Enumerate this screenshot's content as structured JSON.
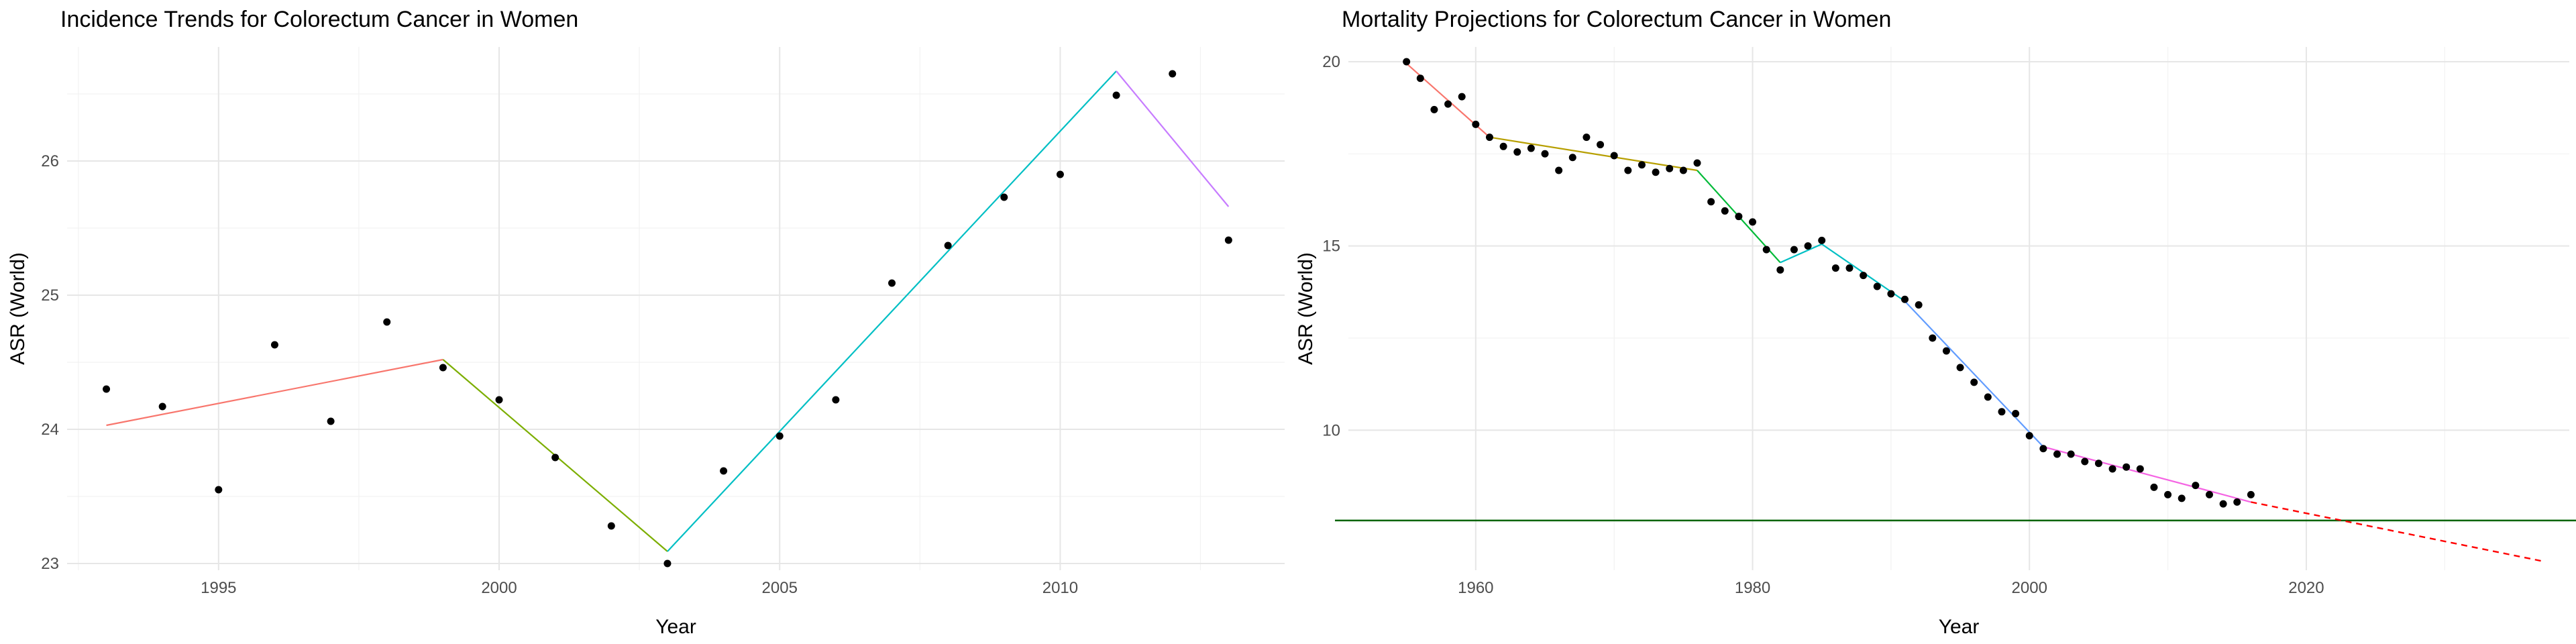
{
  "chart_data": [
    {
      "type": "line",
      "title": "Incidence Trends for Colorectum Cancer in Women",
      "xlabel": "Year",
      "ylabel": "ASR (World)",
      "xlim": [
        1992.3,
        2014.0
      ],
      "ylim": [
        22.95,
        26.85
      ],
      "xticks": [
        1995,
        2000,
        2005,
        2010
      ],
      "yticks": [
        23,
        24,
        25,
        26
      ],
      "grid": true,
      "legend": "none",
      "points": {
        "x": [
          1993,
          1994,
          1995,
          1996,
          1997,
          1998,
          1999,
          2000,
          2001,
          2002,
          2003,
          2004,
          2005,
          2006,
          2007,
          2008,
          2009,
          2010,
          2011,
          2012,
          2013
        ],
        "y": [
          24.3,
          24.17,
          23.55,
          24.63,
          24.06,
          24.8,
          24.46,
          24.22,
          23.79,
          23.28,
          23.0,
          23.69,
          23.95,
          24.22,
          25.09,
          25.37,
          25.73,
          25.9,
          26.49,
          26.65,
          25.41
        ]
      },
      "segments": [
        {
          "x": [
            1993,
            1999
          ],
          "y": [
            24.03,
            24.52
          ],
          "color": "#F8766D"
        },
        {
          "x": [
            1999,
            2003
          ],
          "y": [
            24.52,
            23.09
          ],
          "color": "#7CAE00"
        },
        {
          "x": [
            2003,
            2011
          ],
          "y": [
            23.09,
            26.67
          ],
          "color": "#00BFC4"
        },
        {
          "x": [
            2011,
            2013
          ],
          "y": [
            26.67,
            25.66
          ],
          "color": "#C77CFF"
        }
      ]
    },
    {
      "type": "line",
      "title": "Mortality Projections for Colorectum Cancer in Women",
      "xlabel": "Year",
      "ylabel": "ASR (World)",
      "xlim": [
        1950.8,
        2039.0
      ],
      "ylim": [
        6.2,
        20.4
      ],
      "xticks": [
        1960,
        1980,
        2000,
        2020
      ],
      "yticks": [
        10,
        15,
        20
      ],
      "grid": true,
      "legend": "none",
      "points": {
        "x": [
          1955,
          1956,
          1957,
          1958,
          1959,
          1960,
          1961,
          1962,
          1963,
          1964,
          1965,
          1966,
          1967,
          1968,
          1969,
          1970,
          1971,
          1972,
          1973,
          1974,
          1975,
          1976,
          1977,
          1978,
          1979,
          1980,
          1981,
          1982,
          1983,
          1984,
          1985,
          1986,
          1987,
          1988,
          1989,
          1990,
          1991,
          1992,
          1993,
          1994,
          1995,
          1996,
          1997,
          1998,
          1999,
          2000,
          2001,
          2002,
          2003,
          2004,
          2005,
          2006,
          2007,
          2008,
          2009,
          2010,
          2011,
          2012,
          2013,
          2014,
          2015,
          2016
        ],
        "y": [
          20.0,
          19.55,
          18.7,
          18.85,
          19.05,
          18.3,
          17.95,
          17.7,
          17.55,
          17.65,
          17.5,
          17.05,
          17.4,
          17.95,
          17.75,
          17.45,
          17.05,
          17.2,
          17.0,
          17.1,
          17.05,
          17.25,
          16.2,
          15.95,
          15.8,
          15.65,
          14.9,
          14.35,
          14.9,
          15.0,
          15.15,
          14.4,
          14.4,
          14.2,
          13.9,
          13.7,
          13.55,
          13.4,
          12.5,
          12.15,
          11.7,
          11.3,
          10.9,
          10.5,
          10.45,
          9.85,
          9.5,
          9.35,
          9.35,
          9.15,
          9.1,
          8.95,
          9.0,
          8.95,
          8.45,
          8.25,
          8.15,
          8.5,
          8.25,
          8.0,
          8.05,
          8.25
        ]
      },
      "segments": [
        {
          "x": [
            1955,
            1961
          ],
          "y": [
            19.95,
            17.95
          ],
          "color": "#F8766D"
        },
        {
          "x": [
            1961,
            1976
          ],
          "y": [
            17.95,
            17.05
          ],
          "color": "#B79F00"
        },
        {
          "x": [
            1976,
            1982
          ],
          "y": [
            17.05,
            14.55
          ],
          "color": "#00BA38"
        },
        {
          "x": [
            1982,
            1985
          ],
          "y": [
            14.55,
            15.05
          ],
          "color": "#00BFC4"
        },
        {
          "x": [
            1985,
            1991
          ],
          "y": [
            15.05,
            13.5
          ],
          "color": "#00BFC4"
        },
        {
          "x": [
            1991,
            2001
          ],
          "y": [
            13.5,
            9.55
          ],
          "color": "#619CFF"
        },
        {
          "x": [
            2001,
            2016
          ],
          "y": [
            9.55,
            8.05
          ],
          "color": "#F564E3"
        }
      ],
      "projection": {
        "x": [
          2016,
          2037
        ],
        "y": [
          8.05,
          6.45
        ],
        "color": "#FF0000",
        "style": "dashed"
      },
      "reference_line": {
        "y": 7.55,
        "color": "#006400"
      }
    }
  ]
}
